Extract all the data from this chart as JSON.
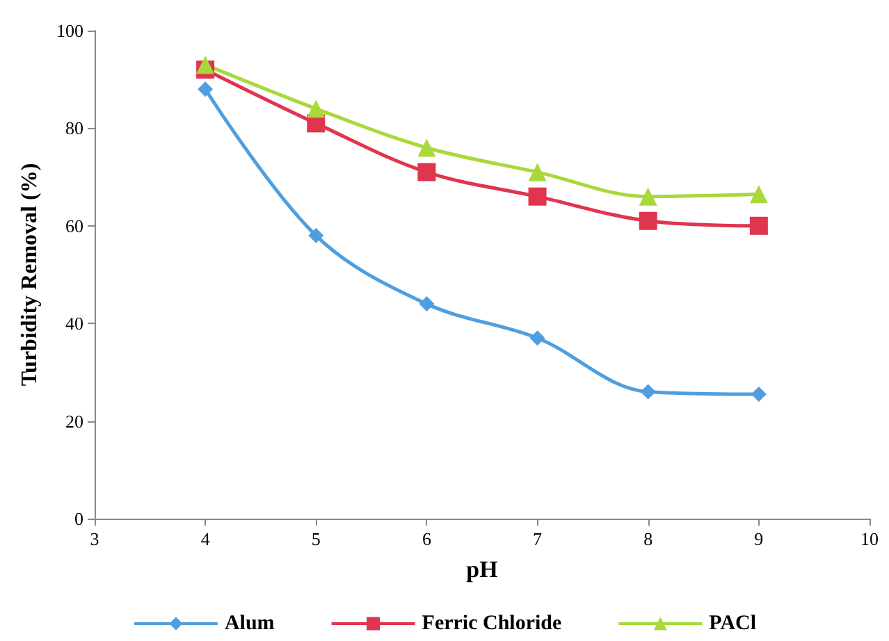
{
  "chart_data": {
    "type": "line",
    "xlabel": "pH",
    "ylabel": "Turbidity Removal (%)",
    "x": [
      4,
      5,
      6,
      7,
      8,
      9
    ],
    "xlim": [
      3,
      10
    ],
    "xticks": [
      3,
      4,
      5,
      6,
      7,
      8,
      9,
      10
    ],
    "ylim": [
      0,
      100
    ],
    "yticks": [
      0,
      20,
      40,
      60,
      80,
      100
    ],
    "grid": false,
    "legend": "bottom",
    "series": [
      {
        "name": "Alum",
        "color": "#4f9fe0",
        "marker": "diamond",
        "values": [
          88,
          58,
          44,
          37,
          26,
          25.5
        ]
      },
      {
        "name": "Ferric Chloride",
        "color": "#e0354f",
        "marker": "square",
        "values": [
          92,
          81,
          71,
          66,
          61,
          60
        ]
      },
      {
        "name": "PACl",
        "color": "#a8d83a",
        "marker": "triangle",
        "values": [
          93,
          84,
          76,
          71,
          66,
          66.5
        ]
      }
    ]
  }
}
